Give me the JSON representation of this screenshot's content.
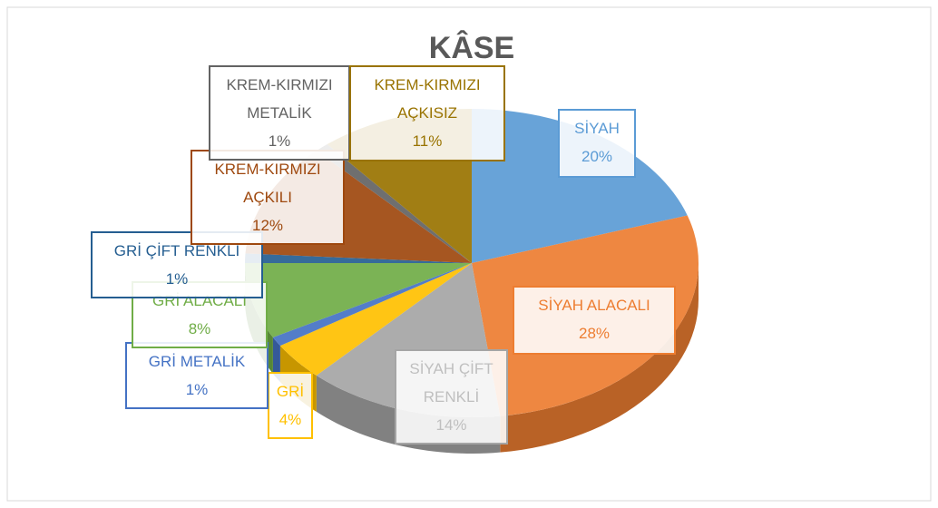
{
  "chart_data": {
    "type": "pie",
    "title": "KÂSE",
    "categories": [
      "SİYAH",
      "SİYAH ALACALI",
      "SİYAH ÇİFT RENKLİ",
      "GRİ",
      "GRİ METALİK",
      "GRİ ALACALI",
      "GRİ ÇİFT RENKLİ",
      "KREM-KIRMIZI AÇKILI",
      "KREM-KIRMIZI METALİK",
      "KREM-KIRMIZI AÇKISIZ"
    ],
    "values": [
      20,
      28,
      14,
      4,
      1,
      8,
      1,
      12,
      1,
      11
    ],
    "value_labels": [
      "20%",
      "28%",
      "14%",
      "4%",
      "1%",
      "8%",
      "1%",
      "12%",
      "1%",
      "11%"
    ],
    "colors": [
      "#5b9bd5",
      "#ed7d31",
      "#a5a5a5",
      "#ffc000",
      "#4472c4",
      "#70ad47",
      "#255e91",
      "#9e480e",
      "#636363",
      "#997300"
    ]
  }
}
